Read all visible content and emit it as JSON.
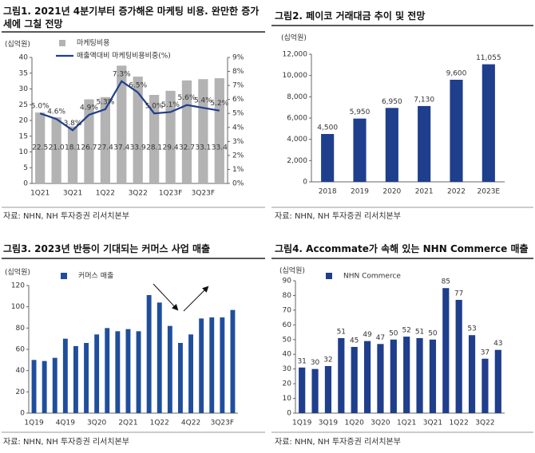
{
  "chart_data": [
    {
      "type": "bar",
      "title": "그림1. 2021년 4분기부터 증가해온 마케팅 비용. 완만한 증가세에 그칠 전망",
      "unit": "(십억원)",
      "source": "자료: NHN, NH 투자증권 리서치본부",
      "categories": [
        "1Q21",
        null,
        "3Q21",
        null,
        "1Q22",
        null,
        "3Q22",
        null,
        "1Q23F",
        null,
        "3Q23F",
        null
      ],
      "series": [
        {
          "name": "마케팅비용",
          "type": "bar",
          "color": "#b3b3b3",
          "values": [
            22.5,
            21.0,
            18.1,
            26.7,
            27.4,
            37.4,
            33.9,
            28.1,
            29.4,
            32.7,
            33.1,
            33.4
          ],
          "value_labels": [
            "22.5",
            "21.0",
            "18.1",
            "26.7",
            "27.4",
            "37.4",
            "33.9",
            "28.1",
            "29.4",
            "32.7",
            "33.1",
            "33.4"
          ]
        },
        {
          "name": "매출액대비 마케팅비용비중(%)",
          "type": "line",
          "axis": "y2",
          "color": "#1f3e8c",
          "values": [
            5.0,
            4.6,
            3.8,
            4.9,
            5.3,
            7.3,
            6.5,
            5.0,
            5.1,
            5.6,
            5.4,
            5.2
          ],
          "value_labels": [
            "5.0%",
            "4.6%",
            "3.8%",
            "4.9%",
            "5.3%",
            "7.3%",
            "6.5%",
            "5.0%",
            "5.1%",
            "5.6%",
            "5.4%",
            "5.2%"
          ]
        }
      ],
      "ylim": [
        0,
        40
      ],
      "yticks": [
        0,
        5,
        10,
        15,
        20,
        25,
        30,
        35,
        40
      ],
      "y2lim": [
        0,
        9
      ],
      "y2ticks": [
        {
          "value": 0,
          "label": "0%"
        },
        {
          "value": 1,
          "label": "1%"
        },
        {
          "value": 2,
          "label": "2%"
        },
        {
          "value": 3,
          "label": "3%"
        },
        {
          "value": 4,
          "label": "4%"
        },
        {
          "value": 5,
          "label": "5%"
        },
        {
          "value": 6,
          "label": "6%"
        },
        {
          "value": 7,
          "label": "7%"
        },
        {
          "value": 8,
          "label": "8%"
        },
        {
          "value": 9,
          "label": "9%"
        }
      ],
      "data_labels": true
    },
    {
      "type": "bar",
      "title": "그림2. 페이코 거래대금 추이 및 전망",
      "unit": "(십억원)",
      "source": "자료: NHN, NH 투자증권 리서치본부",
      "categories": [
        "2018",
        "2019",
        "2020",
        "2021",
        "2022",
        "2023E"
      ],
      "series": [
        {
          "color": "#1f3e8c",
          "values": [
            4500,
            5950,
            6950,
            7130,
            9600,
            11055
          ],
          "value_labels": [
            "4,500",
            "5,950",
            "6,950",
            "7,130",
            "9,600",
            "11,055"
          ]
        }
      ],
      "ylim": [
        0,
        12000
      ],
      "yticks": [
        0,
        {
          "value": 2000,
          "label": "2,000"
        },
        {
          "value": 4000,
          "label": "4,000"
        },
        {
          "value": 6000,
          "label": "6,000"
        },
        {
          "value": 8000,
          "label": "8,000"
        },
        {
          "value": 10000,
          "label": "10,000"
        },
        {
          "value": 12000,
          "label": "12,000"
        }
      ],
      "data_labels": true
    },
    {
      "type": "bar",
      "title": "그림3. 2023년 반등이 기대되는 커머스 사업 매출",
      "unit": "(십억원)",
      "source": "자료: NHN, NH 투자증권 리서치본부",
      "categories": [
        "1Q19",
        null,
        null,
        "4Q19",
        null,
        null,
        "3Q20",
        null,
        null,
        "2Q21",
        null,
        null,
        "1Q22",
        null,
        null,
        "4Q22",
        null,
        null,
        "3Q23F",
        null
      ],
      "series": [
        {
          "name": "커머스 매출",
          "color": "#1f4e9c",
          "values": [
            50,
            49,
            52,
            70,
            63,
            66,
            74,
            80,
            77,
            79,
            77,
            111,
            104,
            82,
            66,
            74,
            89,
            90,
            90,
            97
          ]
        }
      ],
      "ylim": [
        0,
        120
      ],
      "yticks": [
        0,
        20,
        40,
        60,
        80,
        100,
        120
      ],
      "data_labels": false
    },
    {
      "type": "bar",
      "title": "그림4. Accommate가 속해 있는 NHN Commerce 매출",
      "unit": "(십억원)",
      "source": "자료: NHN, NH 투자증권 리서치본부",
      "categories": [
        "1Q19",
        null,
        "3Q19",
        null,
        "1Q20",
        null,
        "3Q20",
        null,
        "1Q21",
        null,
        "3Q21",
        null,
        "1Q22",
        null,
        "3Q22",
        null
      ],
      "series": [
        {
          "name": "NHN Commerce",
          "color": "#1f3e8c",
          "values": [
            31,
            30,
            32,
            51,
            45,
            49,
            47,
            50,
            52,
            51,
            50,
            85,
            77,
            53,
            37,
            43
          ]
        }
      ],
      "ylim": [
        0,
        90
      ],
      "yticks": [
        0,
        10,
        20,
        30,
        40,
        50,
        60,
        70,
        80,
        90
      ],
      "data_labels": true
    }
  ]
}
